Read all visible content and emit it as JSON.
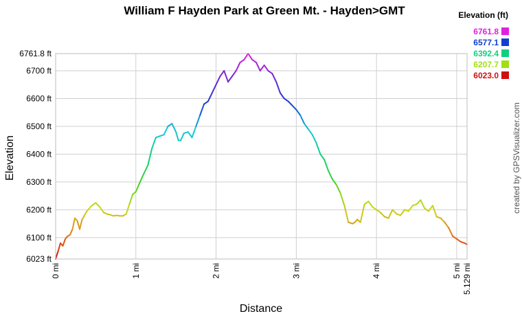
{
  "chart_data": {
    "type": "line",
    "title": "William F Hayden Park at Green Mt. - Hayden>GMT",
    "xlabel": "Distance",
    "ylabel": "Elevation",
    "xlim": [
      0,
      5.129
    ],
    "ylim": [
      6023.0,
      6761.8
    ],
    "x_ticks": [
      {
        "value": 0,
        "label": "0 mi"
      },
      {
        "value": 1,
        "label": "1 mi"
      },
      {
        "value": 2,
        "label": "2 mi"
      },
      {
        "value": 3,
        "label": "3 mi"
      },
      {
        "value": 4,
        "label": "4 mi"
      },
      {
        "value": 5,
        "label": "5 mi"
      },
      {
        "value": 5.129,
        "label": "5.129 mi"
      }
    ],
    "y_ticks": [
      {
        "value": 6023.0,
        "label": "6023 ft"
      },
      {
        "value": 6100,
        "label": "6100 ft"
      },
      {
        "value": 6200,
        "label": "6200 ft"
      },
      {
        "value": 6300,
        "label": "6300 ft"
      },
      {
        "value": 6400,
        "label": "6400 ft"
      },
      {
        "value": 6500,
        "label": "6500 ft"
      },
      {
        "value": 6600,
        "label": "6600 ft"
      },
      {
        "value": 6700,
        "label": "6700 ft"
      },
      {
        "value": 6761.8,
        "label": "6761.8 ft"
      }
    ],
    "grid": true,
    "legend_position": "top-right",
    "legend": {
      "title": "Elevation (ft)",
      "entries": [
        {
          "label": "6761.8",
          "color": "#e020e0"
        },
        {
          "label": "6577.1",
          "color": "#1040d0"
        },
        {
          "label": "6392.4",
          "color": "#10d080"
        },
        {
          "label": "6207.7",
          "color": "#a0e010"
        },
        {
          "label": "6023.0",
          "color": "#d01010"
        }
      ]
    },
    "credit": "created by GPSVisualizer.com",
    "series": [
      {
        "x": [
          0,
          0.03,
          0.06,
          0.09,
          0.12,
          0.15,
          0.18,
          0.21,
          0.24,
          0.27,
          0.3,
          0.33,
          0.36,
          0.39,
          0.42,
          0.45,
          0.5,
          0.55,
          0.6,
          0.64,
          0.68,
          0.72,
          0.76,
          0.8,
          0.84,
          0.88,
          0.92,
          0.96,
          1.0,
          1.03,
          1.06,
          1.1,
          1.15,
          1.2,
          1.25,
          1.3,
          1.35,
          1.4,
          1.45,
          1.5,
          1.53,
          1.56,
          1.6,
          1.65,
          1.7,
          1.75,
          1.8,
          1.85,
          1.9,
          1.95,
          2.0,
          2.05,
          2.1,
          2.15,
          2.2,
          2.25,
          2.3,
          2.35,
          2.4,
          2.45,
          2.5,
          2.55,
          2.6,
          2.65,
          2.7,
          2.75,
          2.8,
          2.85,
          2.9,
          2.95,
          3.0,
          3.05,
          3.1,
          3.15,
          3.2,
          3.25,
          3.3,
          3.35,
          3.4,
          3.45,
          3.5,
          3.55,
          3.6,
          3.65,
          3.7,
          3.73,
          3.76,
          3.8,
          3.85,
          3.9,
          3.95,
          4.0,
          4.05,
          4.1,
          4.15,
          4.2,
          4.25,
          4.3,
          4.35,
          4.4,
          4.45,
          4.5,
          4.55,
          4.6,
          4.65,
          4.7,
          4.75,
          4.8,
          4.85,
          4.9,
          4.95,
          5.0,
          5.05,
          5.1,
          5.129
        ],
        "values": [
          6023,
          6050,
          6080,
          6070,
          6095,
          6105,
          6110,
          6130,
          6170,
          6160,
          6130,
          6165,
          6180,
          6195,
          6205,
          6215,
          6225,
          6210,
          6190,
          6185,
          6182,
          6178,
          6180,
          6178,
          6178,
          6185,
          6220,
          6255,
          6265,
          6285,
          6305,
          6330,
          6360,
          6420,
          6460,
          6465,
          6470,
          6500,
          6510,
          6480,
          6450,
          6450,
          6475,
          6480,
          6460,
          6500,
          6540,
          6580,
          6590,
          6620,
          6650,
          6680,
          6700,
          6660,
          6680,
          6700,
          6730,
          6740,
          6762,
          6740,
          6730,
          6700,
          6720,
          6700,
          6690,
          6660,
          6620,
          6600,
          6590,
          6575,
          6560,
          6540,
          6510,
          6490,
          6470,
          6440,
          6400,
          6380,
          6340,
          6310,
          6290,
          6260,
          6215,
          6155,
          6150,
          6155,
          6165,
          6155,
          6220,
          6230,
          6210,
          6200,
          6190,
          6175,
          6170,
          6200,
          6185,
          6180,
          6200,
          6195,
          6215,
          6220,
          6235,
          6205,
          6195,
          6215,
          6175,
          6170,
          6155,
          6135,
          6105,
          6095,
          6085,
          6080,
          6075
        ]
      }
    ]
  }
}
